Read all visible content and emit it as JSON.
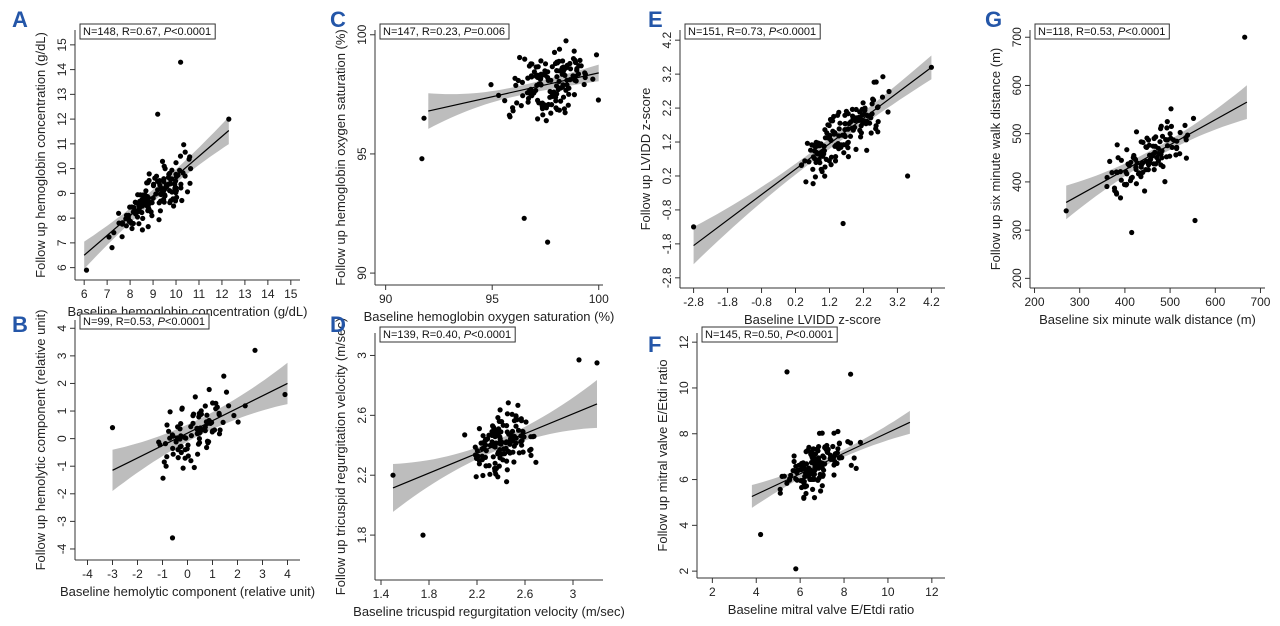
{
  "figure": {
    "accent_color": "#2456a8",
    "band_color": "#bdbdbd",
    "point_color": "#000000"
  },
  "chart_data": [
    {
      "id": "A",
      "type": "scatter",
      "letter": "A",
      "stats": {
        "n": "N=148",
        "r": "R=0.67,",
        "p_label": "P",
        "p_value": "<0.0001"
      },
      "xlabel": "Baseline hemoglobin concentration (g/dL)",
      "ylabel": "Follow up hemoglobin concentration (g/dL)",
      "xlim": [
        5.6,
        15.4
      ],
      "ylim": [
        5.5,
        15.6
      ],
      "xticks": [
        6,
        7,
        8,
        9,
        10,
        11,
        12,
        13,
        14,
        15
      ],
      "xtick_labels": [
        "6",
        "7",
        "8",
        "9",
        "10",
        "11",
        "12",
        "13",
        "14",
        "15"
      ],
      "yticks": [
        6,
        7,
        8,
        9,
        10,
        11,
        12,
        13,
        14,
        15
      ],
      "ytick_labels": [
        "6",
        "7",
        "8",
        "9",
        "10",
        "11",
        "12",
        "13",
        "14",
        "15"
      ],
      "fit": {
        "x0": 6.0,
        "x1": 12.3,
        "intercept": 1.7,
        "slope": 0.8
      },
      "band_half_width": [
        0.55,
        0.25,
        0.55
      ],
      "points": {
        "n": 148,
        "x_range": [
          6.1,
          12.3
        ],
        "x_center": 9.1,
        "x_spread": 1.4,
        "intercept": 1.7,
        "slope": 0.8,
        "noise": 1.0,
        "seed": 11,
        "extra": [
          [
            10.2,
            14.3
          ],
          [
            12.3,
            12.0
          ],
          [
            6.1,
            5.9
          ],
          [
            9.2,
            12.2
          ]
        ]
      }
    },
    {
      "id": "B",
      "type": "scatter",
      "letter": "B",
      "stats": {
        "n": "N=99",
        "r": "R=0.53,",
        "p_label": "P",
        "p_value": "<0.0001"
      },
      "xlabel": "Baseline hemolytic component (relative unit)",
      "ylabel": "Follow up hemolytic component (relative unit)",
      "xlim": [
        -4.5,
        4.5
      ],
      "ylim": [
        -4.4,
        4.3
      ],
      "xticks": [
        -4,
        -3,
        -2,
        -1,
        0,
        1,
        2,
        3,
        4
      ],
      "xtick_labels": [
        "-4",
        "-3",
        "-2",
        "-1",
        "0",
        "1",
        "2",
        "3",
        "4"
      ],
      "yticks": [
        -4,
        -3,
        -2,
        -1,
        0,
        1,
        2,
        3,
        4
      ],
      "ytick_labels": [
        "-4",
        "-3",
        "-2",
        "-1",
        "0",
        "1",
        "2",
        "3",
        "4"
      ],
      "fit": {
        "x0": -3.0,
        "x1": 4.0,
        "intercept": 0.2,
        "slope": 0.45
      },
      "band_half_width": [
        0.75,
        0.3,
        0.75
      ],
      "points": {
        "n": 99,
        "x_range": [
          -3.1,
          3.9
        ],
        "x_center": 0.3,
        "x_spread": 1.5,
        "intercept": 0.2,
        "slope": 0.45,
        "noise": 1.15,
        "seed": 23,
        "extra": [
          [
            -0.6,
            -3.6
          ],
          [
            2.7,
            3.2
          ],
          [
            3.9,
            1.6
          ],
          [
            -3.0,
            0.4
          ]
        ]
      }
    },
    {
      "id": "C",
      "type": "scatter",
      "letter": "C",
      "stats": {
        "n": "N=147",
        "r": "R=0.23,",
        "p_label": "P",
        "p_value": "=0.006"
      },
      "xlabel": "Baseline hemoglobin oxygen saturation (%)",
      "ylabel": "Follow up hemoglobin oxygen saturation (%)",
      "xlim": [
        89.5,
        100.2
      ],
      "ylim": [
        89.5,
        100.2
      ],
      "xticks": [
        90,
        95,
        100
      ],
      "xtick_labels": [
        "90",
        "95",
        "100"
      ],
      "yticks": [
        90,
        95,
        100
      ],
      "ytick_labels": [
        "90",
        "95",
        "100"
      ],
      "fit": {
        "x0": 92.0,
        "x1": 100.0,
        "intercept": 78.4,
        "slope": 0.2
      },
      "band_half_width": [
        0.75,
        0.2,
        0.35
      ],
      "points": {
        "n": 147,
        "x_range": [
          91.8,
          100.0
        ],
        "x_center": 97.8,
        "x_spread": 2.0,
        "intercept": 78.4,
        "slope": 0.2,
        "noise": 1.5,
        "seed": 37,
        "ymax": 100.0,
        "extra": [
          [
            97.6,
            91.3
          ],
          [
            91.7,
            94.8
          ],
          [
            91.8,
            96.5
          ],
          [
            96.5,
            92.3
          ]
        ]
      }
    },
    {
      "id": "D",
      "type": "scatter",
      "letter": "D",
      "stats": {
        "n": "N=139",
        "r": "R=0.40,",
        "p_label": "P",
        "p_value": "<0.0001"
      },
      "xlabel": "Baseline tricuspid regurgitation velocity (m/sec)",
      "ylabel": "Follow up tricuspid regurgitation velocity (m/sec)",
      "xlim": [
        1.35,
        3.25
      ],
      "ylim": [
        1.5,
        3.15
      ],
      "xticks": [
        1.4,
        1.8,
        2.2,
        2.6,
        3.0
      ],
      "xtick_labels": [
        "1.4",
        "1.8",
        "2.2",
        "2.6",
        "3"
      ],
      "yticks": [
        1.8,
        2.2,
        2.6,
        3.0
      ],
      "ytick_labels": [
        "1.8",
        "2.2",
        "2.6",
        "3"
      ],
      "fit": {
        "x0": 1.5,
        "x1": 3.2,
        "intercept": 1.62,
        "slope": 0.33
      },
      "band_half_width": [
        0.16,
        0.035,
        0.16
      ],
      "points": {
        "n": 139,
        "x_range": [
          1.5,
          3.2
        ],
        "x_center": 2.4,
        "x_spread": 0.22,
        "intercept": 1.62,
        "slope": 0.33,
        "noise": 0.2,
        "seed": 41,
        "extra": [
          [
            1.75,
            1.8
          ],
          [
            3.2,
            2.95
          ],
          [
            1.5,
            2.2
          ],
          [
            3.05,
            2.97
          ]
        ]
      }
    },
    {
      "id": "E",
      "type": "scatter",
      "letter": "E",
      "stats": {
        "n": "N=151",
        "r": "R=0.73,",
        "p_label": "P",
        "p_value": "<0.0001"
      },
      "xlabel": "Baseline LVIDD z-score",
      "ylabel": "Follow up LVIDD z-score",
      "xlim": [
        -3.2,
        4.6
      ],
      "ylim": [
        -3.1,
        4.5
      ],
      "xticks": [
        -2.8,
        -1.8,
        -0.8,
        0.2,
        1.2,
        2.2,
        3.2,
        4.2
      ],
      "xtick_labels": [
        "-2.8",
        "-1.8",
        "-0.8",
        "0.2",
        "1.2",
        "2.2",
        "3.2",
        "4.2"
      ],
      "yticks": [
        -2.8,
        -1.8,
        -0.8,
        0.2,
        1.2,
        2.2,
        3.2,
        4.2
      ],
      "ytick_labels": [
        "-2.8",
        "-1.8",
        "-0.8",
        "0.2",
        "1.2",
        "2.2",
        "3.2",
        "4.2"
      ],
      "fit": {
        "x0": -2.8,
        "x1": 4.2,
        "intercept": 0.25,
        "slope": 0.75
      },
      "band_half_width": [
        0.55,
        0.15,
        0.35
      ],
      "points": {
        "n": 151,
        "x_range": [
          -1.0,
          4.1
        ],
        "x_center": 1.6,
        "x_spread": 1.1,
        "intercept": 0.25,
        "slope": 0.75,
        "noise": 0.8,
        "seed": 53,
        "extra": [
          [
            -2.8,
            -1.3
          ],
          [
            4.2,
            3.4
          ],
          [
            3.5,
            0.2
          ],
          [
            1.6,
            -1.2
          ]
        ]
      }
    },
    {
      "id": "F",
      "type": "scatter",
      "letter": "F",
      "stats": {
        "n": "N=145",
        "r": "R=0.50,",
        "p_label": "P",
        "p_value": "<0.0001"
      },
      "xlabel": "Baseline mitral valve E/Etdi ratio",
      "ylabel": "Follow up mitral valve E/Etdi ratio",
      "xlim": [
        1.3,
        12.6
      ],
      "ylim": [
        1.7,
        12.4
      ],
      "xticks": [
        2,
        4,
        6,
        8,
        10,
        12
      ],
      "xtick_labels": [
        "2",
        "4",
        "6",
        "8",
        "10",
        "12"
      ],
      "yticks": [
        2,
        4,
        6,
        8,
        10,
        12
      ],
      "ytick_labels": [
        "2",
        "4",
        "6",
        "8",
        "10",
        "12"
      ],
      "fit": {
        "x0": 3.8,
        "x1": 11.0,
        "intercept": 3.55,
        "slope": 0.45
      },
      "band_half_width": [
        0.5,
        0.15,
        0.5
      ],
      "points": {
        "n": 145,
        "x_range": [
          4.0,
          11.0
        ],
        "x_center": 6.8,
        "x_spread": 1.3,
        "intercept": 3.55,
        "slope": 0.45,
        "noise": 1.05,
        "seed": 67,
        "extra": [
          [
            5.8,
            2.1
          ],
          [
            8.3,
            10.6
          ],
          [
            5.4,
            10.7
          ],
          [
            4.2,
            3.6
          ]
        ]
      }
    },
    {
      "id": "G",
      "type": "scatter",
      "letter": "G",
      "stats": {
        "n": "N=118",
        "r": "R=0.53,",
        "p_label": "P",
        "p_value": "<0.0001"
      },
      "xlabel": "Baseline six minute walk distance (m)",
      "ylabel": "Follow up six minute walk distance (m)",
      "xlim": [
        190,
        710
      ],
      "ylim": [
        180,
        715
      ],
      "xticks": [
        200,
        300,
        400,
        500,
        600,
        700
      ],
      "xtick_labels": [
        "200",
        "300",
        "400",
        "500",
        "600",
        "700"
      ],
      "yticks": [
        200,
        300,
        400,
        500,
        600,
        700
      ],
      "ytick_labels": [
        "200",
        "300",
        "400",
        "500",
        "600",
        "700"
      ],
      "fit": {
        "x0": 270,
        "x1": 670,
        "intercept": 217,
        "slope": 0.52
      },
      "band_half_width": [
        35,
        10,
        35
      ],
      "points": {
        "n": 118,
        "x_range": [
          270,
          670
        ],
        "x_center": 450,
        "x_spread": 75,
        "intercept": 217,
        "slope": 0.52,
        "noise": 60,
        "seed": 79,
        "extra": [
          [
            665,
            700
          ],
          [
            270,
            340
          ],
          [
            415,
            295
          ],
          [
            555,
            320
          ]
        ]
      }
    }
  ]
}
